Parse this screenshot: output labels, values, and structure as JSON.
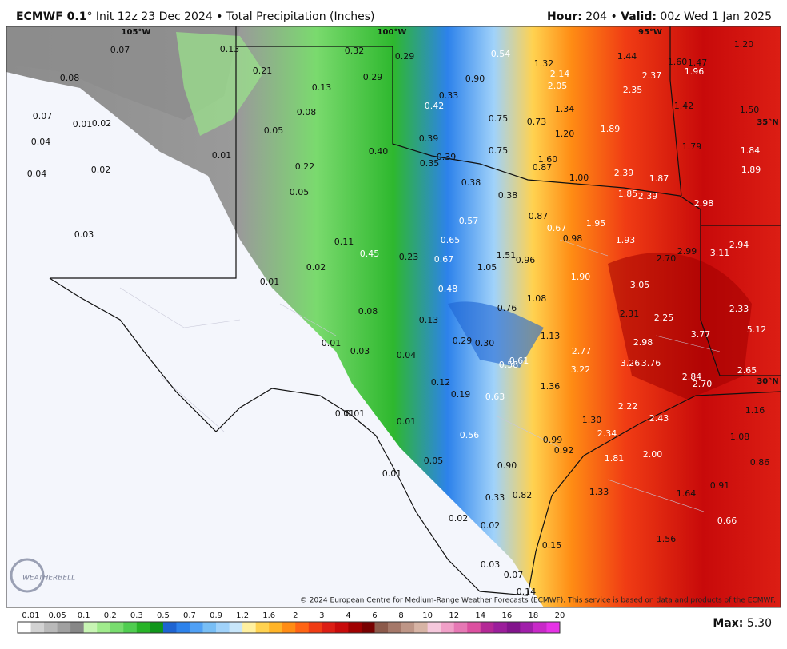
{
  "header": {
    "model": "ECMWF 0.1",
    "description": "° Init 12z 23 Dec 2024 • Total Precipitation (Inches)",
    "hour_label": "Hour:",
    "hour": " 204 • ",
    "valid_label": "Valid:",
    "valid": " 00z Wed 1 Jan 2025"
  },
  "map": {
    "geo_labels": [
      "105°W",
      "100°W",
      "95°W",
      "35°N",
      "30°N"
    ],
    "values": [
      "0.07",
      "0.13",
      "0.32",
      "0.29",
      "0.54",
      "1.32",
      "1.44",
      "1.60",
      "1.47",
      "1.20",
      "0.08",
      "0.21",
      "0.29",
      "0.13",
      "0.90",
      "2.14",
      "2.05",
      "2.37",
      "1.96",
      "2.35",
      "0.07",
      "0.01",
      "0.02",
      "0.05",
      "0.08",
      "0.42",
      "0.33",
      "0.75",
      "0.73",
      "1.34",
      "1.42",
      "1.50",
      "0.04",
      "0.01",
      "0.39",
      "1.20",
      "1.89",
      "0.40",
      "0.39",
      "0.35",
      "0.75",
      "1.60",
      "0.87",
      "1.00",
      "1.79",
      "1.84",
      "0.04",
      "0.02",
      "0.22",
      "0.38",
      "2.39",
      "1.87",
      "1.89",
      "0.05",
      "0.38",
      "1.85",
      "2.39",
      "2.98",
      "0.57",
      "0.87",
      "1.95",
      "0.67",
      "0.03",
      "0.11",
      "0.65",
      "0.98",
      "1.93",
      "2.94",
      "0.45",
      "0.23",
      "0.67",
      "1.51",
      "0.96",
      "2.70",
      "2.99",
      "3.11",
      "0.02",
      "1.05",
      "1.90",
      "0.01",
      "3.05",
      "0.48",
      "1.08",
      "0.76",
      "2.33",
      "0.08",
      "2.31",
      "2.25",
      "0.13",
      "5.12",
      "3.77",
      "1.13",
      "0.01",
      "0.29",
      "0.30",
      "2.98",
      "0.03",
      "2.77",
      "0.04",
      "0.61",
      "0.58",
      "3.26",
      "3.76",
      "3.22",
      "2.65",
      "2.84",
      "2.70",
      "0.12",
      "1.36",
      "0.19",
      "0.63",
      "0.01",
      "0.01",
      "0.01",
      "1.30",
      "2.22",
      "2.43",
      "1.16",
      "0.56",
      "2.34",
      "0.99",
      "1.08",
      "0.92",
      "1.81",
      "2.00",
      "0.05",
      "0.86",
      "0.90",
      "0.01",
      "0.91",
      "1.33",
      "0.33",
      "0.82",
      "1.64",
      "0.02",
      "0.02",
      "0.66",
      "1.56",
      "0.15",
      "0.03",
      "0.07",
      "0.14"
    ],
    "copyright": "© 2024 European Centre for Medium-Range Weather Forecasts (ECMWF). This service is based on data and products of the ECMWF.",
    "logo": "WEATHERBELL"
  },
  "colorbar": {
    "labels": [
      "0.01",
      "0.05",
      "0.1",
      "0.2",
      "0.3",
      "0.5",
      "0.7",
      "0.9",
      "1.2",
      "1.6",
      "2",
      "3",
      "4",
      "6",
      "8",
      "10",
      "12",
      "14",
      "16",
      "18",
      "20"
    ],
    "colors": [
      "#ffffff",
      "#d2d2d2",
      "#b9b9b9",
      "#a0a0a0",
      "#878787",
      "#c8f5b4",
      "#a0eb8c",
      "#78dc6e",
      "#50cd50",
      "#28b428",
      "#10961a",
      "#1e64d2",
      "#2d82eb",
      "#50a0f5",
      "#78bef5",
      "#a0d2fa",
      "#c8e6fa",
      "#fff0a0",
      "#ffd250",
      "#ffb428",
      "#ff8c14",
      "#ff6414",
      "#f03c14",
      "#dc1e14",
      "#c80a0a",
      "#a00000",
      "#780000",
      "#8c5a4b",
      "#a57869",
      "#be9687",
      "#d7b4a5",
      "#f5c8dc",
      "#f0a0c8",
      "#e678b4",
      "#dc50a0",
      "#b42896",
      "#9b1e9b",
      "#82148c",
      "#a01eaa",
      "#c828c8",
      "#e632e6"
    ],
    "max_label": "Max:",
    "max": " 5.30"
  }
}
